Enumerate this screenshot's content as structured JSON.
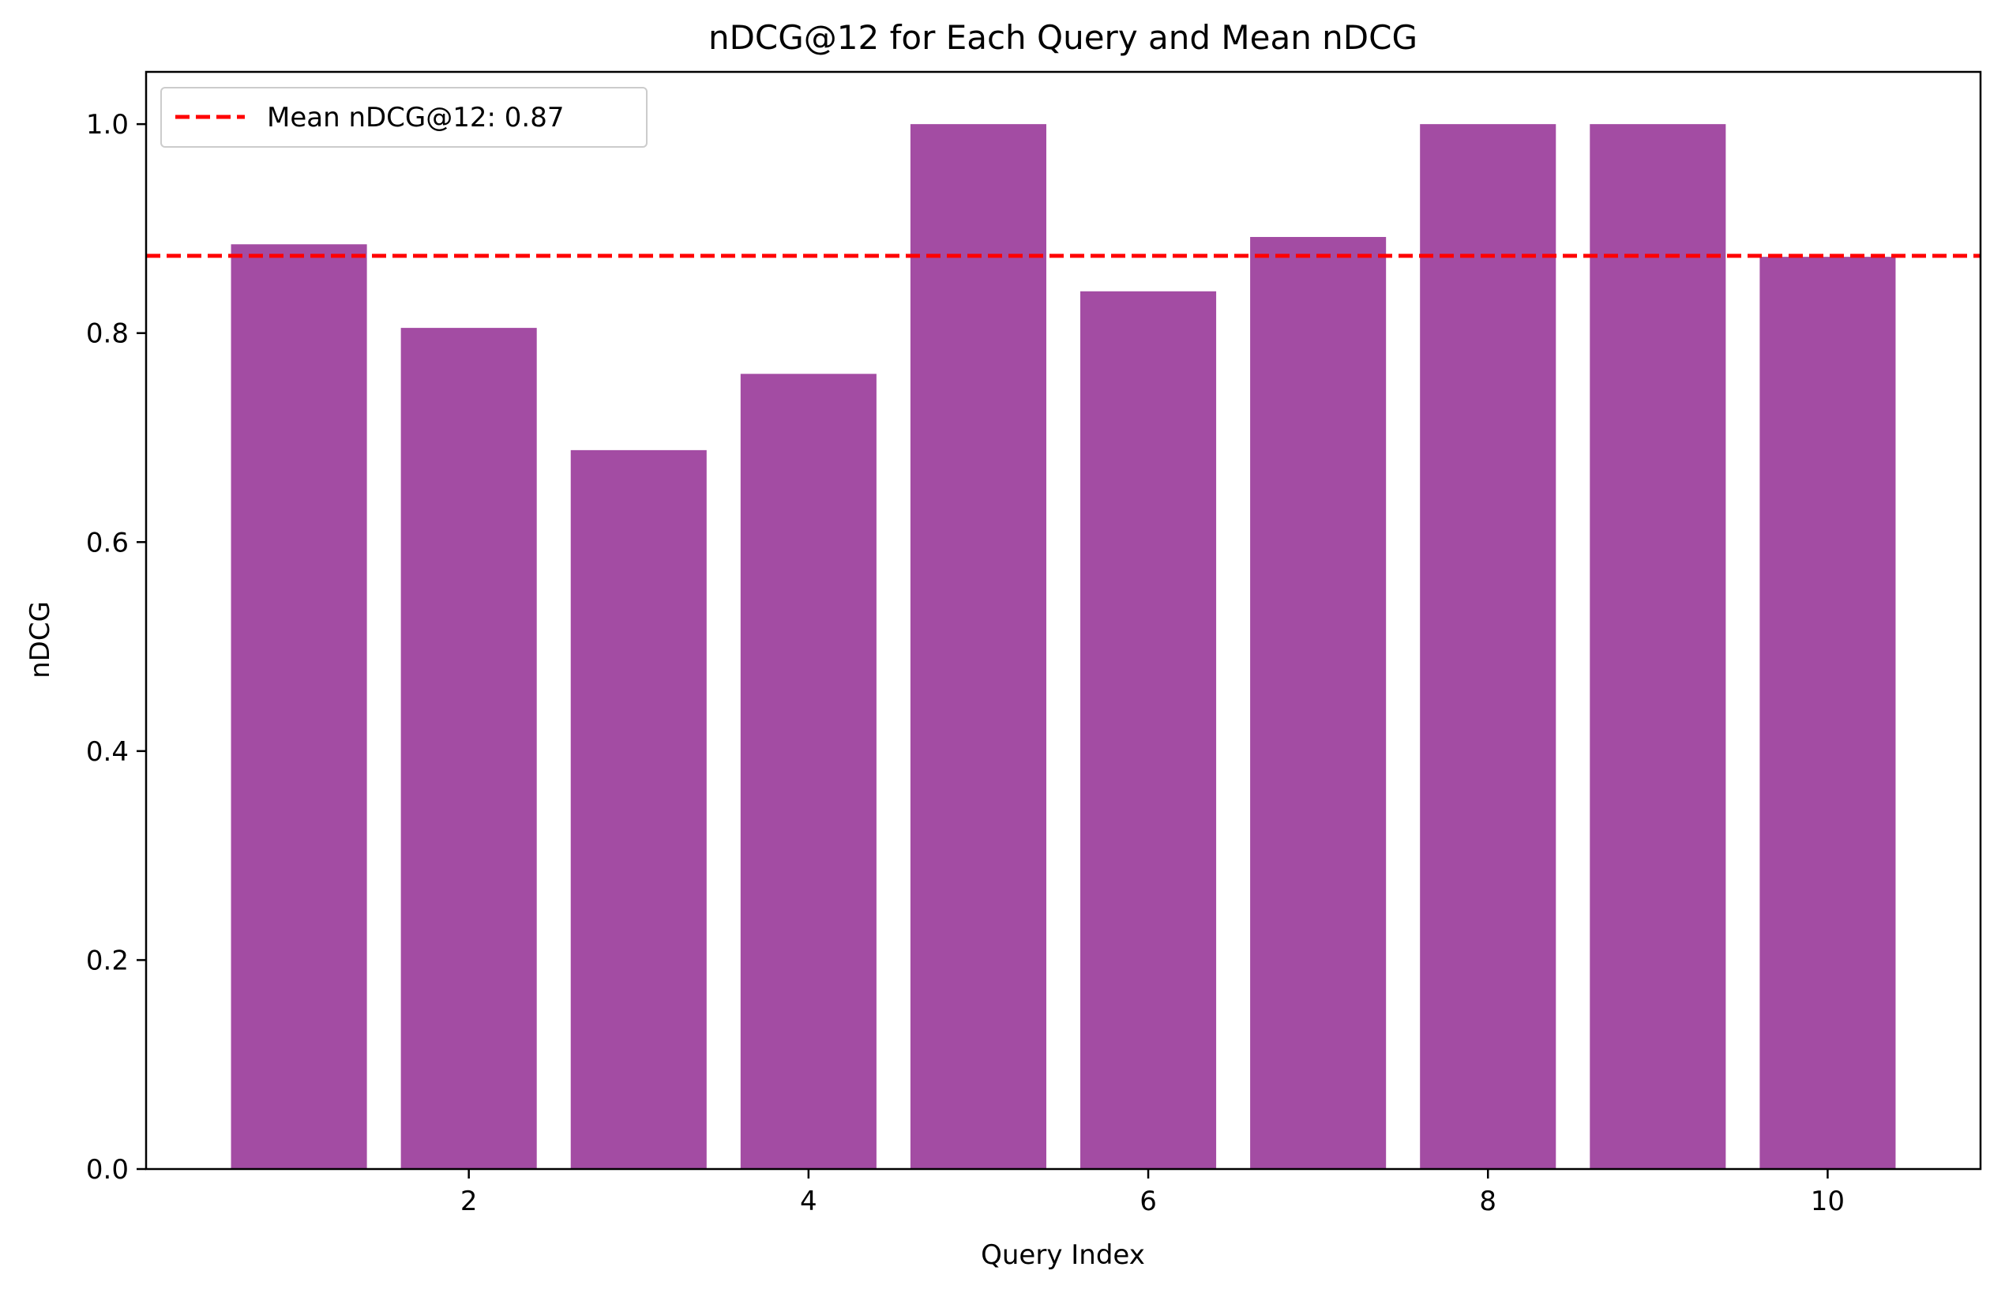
{
  "chart_data": {
    "type": "bar",
    "title": "nDCG@12 for Each Query and Mean nDCG",
    "xlabel": "Query Index",
    "ylabel": "nDCG",
    "categories": [
      1,
      2,
      3,
      4,
      5,
      6,
      7,
      8,
      9,
      10
    ],
    "values": [
      0.885,
      0.805,
      0.688,
      0.761,
      1.0,
      0.84,
      0.892,
      1.0,
      1.0,
      0.873
    ],
    "bar_color": "#a34ca3",
    "xlim": [
      0.1,
      10.9
    ],
    "ylim": [
      0,
      1.05
    ],
    "xticks": [
      2,
      4,
      6,
      8,
      10
    ],
    "xtick_labels": [
      "2",
      "4",
      "6",
      "8",
      "10"
    ],
    "yticks": [
      0.0,
      0.2,
      0.4,
      0.6,
      0.8,
      1.0
    ],
    "ytick_labels": [
      "0.0",
      "0.2",
      "0.4",
      "0.6",
      "0.8",
      "1.0"
    ],
    "grid": false,
    "mean_line": {
      "value": 0.874,
      "color": "#ff0000",
      "style": "dashed",
      "label": "Mean nDCG@12: 0.87"
    },
    "legend_position": "upper-left"
  }
}
